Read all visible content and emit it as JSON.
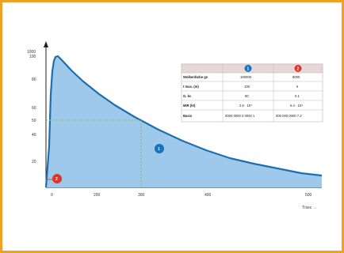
{
  "colors": {
    "border": "#f0a023",
    "curve": "#1d6fb0",
    "fill": "#9fc9ea",
    "badge_blue": "#1474c4",
    "badge_red": "#e0342a",
    "header_row": "#e8d7d7"
  },
  "axes": {
    "y_unit": "1000",
    "y_ticks": [
      "100",
      "80",
      "60",
      "50",
      "40",
      "20"
    ],
    "x_ticks": [
      "0",
      "200",
      "300",
      "400",
      "500"
    ],
    "x_unit": "T/sec →"
  },
  "markers": {
    "blue": "1",
    "red": "2"
  },
  "table": {
    "header": {
      "badge_1": "1",
      "badge_2": "2"
    },
    "rows": [
      {
        "label": "Wolkenfarbe gs",
        "v1": "100000",
        "v2": "8000"
      },
      {
        "label": "t max. (m)",
        "v1": "100",
        "v2": "5"
      },
      {
        "label": "G. kc",
        "v1": "90",
        "v2": "0.1"
      },
      {
        "label": "MIR (kt)",
        "v1": "2.5 · 10⁹",
        "v2": "5.4 · 10⁸"
      },
      {
        "label": "Basis",
        "v1": "0000 0000 0 0000 1",
        "v2": "000 000 0000 7.2"
      }
    ]
  }
}
